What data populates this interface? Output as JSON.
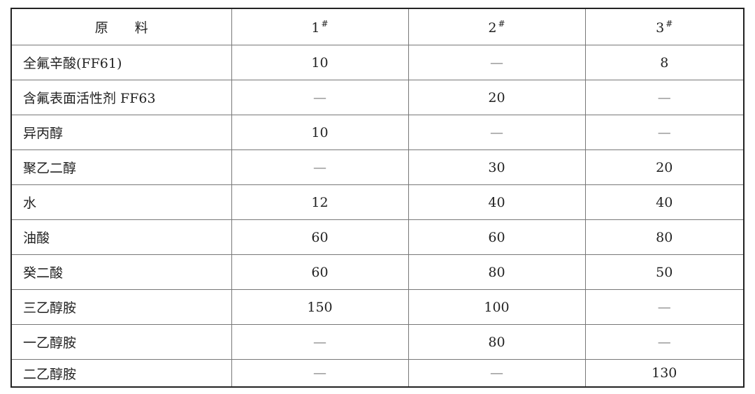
{
  "table": {
    "header": {
      "material": "原　　料",
      "columns": [
        {
          "label": "1",
          "mark": "#"
        },
        {
          "label": "2",
          "mark": "#"
        },
        {
          "label": "3",
          "mark": "#"
        }
      ]
    },
    "rows": [
      {
        "name": "全氟辛酸(FF61)",
        "values": [
          "10",
          "—",
          "8"
        ]
      },
      {
        "name": "含氟表面活性剂 FF63",
        "values": [
          "—",
          "20",
          "—"
        ]
      },
      {
        "name": "异丙醇",
        "values": [
          "10",
          "—",
          "—"
        ]
      },
      {
        "name": "聚乙二醇",
        "values": [
          "—",
          "30",
          "20"
        ]
      },
      {
        "name": "水",
        "values": [
          "12",
          "40",
          "40"
        ]
      },
      {
        "name": "油酸",
        "values": [
          "60",
          "60",
          "80"
        ]
      },
      {
        "name": "癸二酸",
        "values": [
          "60",
          "80",
          "50"
        ]
      },
      {
        "name": "三乙醇胺",
        "values": [
          "150",
          "100",
          "—"
        ]
      },
      {
        "name": "一乙醇胺",
        "values": [
          "—",
          "80",
          "—"
        ]
      },
      {
        "name": "二乙醇胺",
        "values": [
          "—",
          "—",
          "130"
        ]
      }
    ]
  }
}
